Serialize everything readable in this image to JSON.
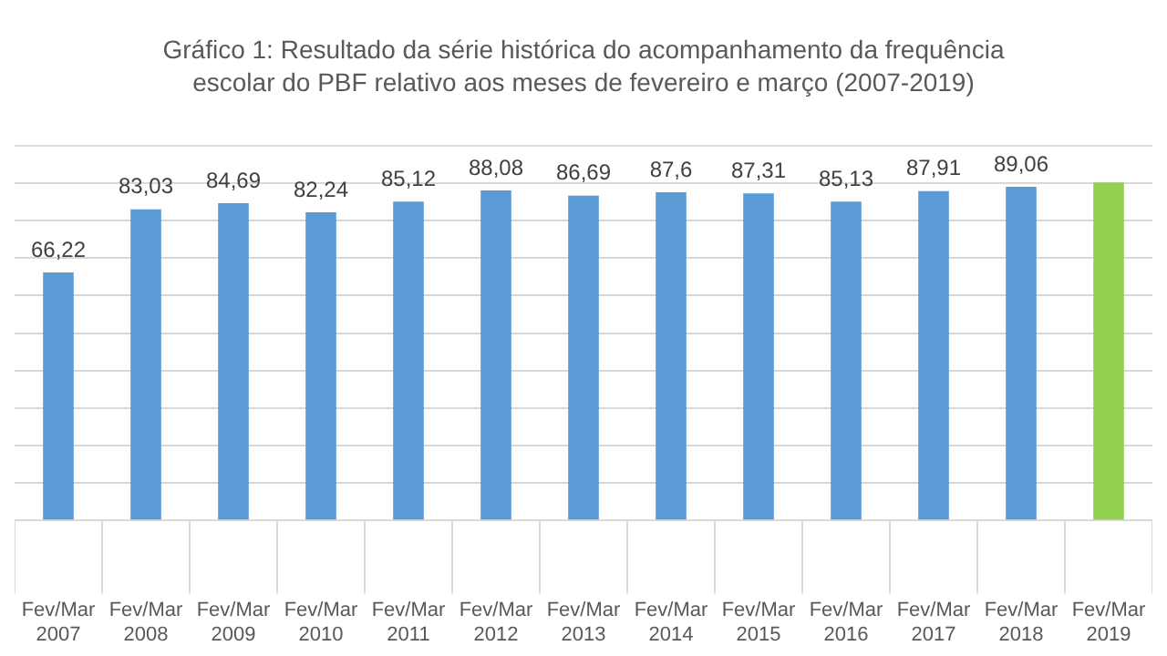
{
  "chart_data": {
    "type": "bar",
    "title": "Gráfico 1: Resultado da série histórica do acompanhamento  da frequência escolar do PBF relativo aos meses de fevereiro e março (2007-2019)",
    "categories": [
      "Fev/Mar 2007",
      "Fev/Mar 2008",
      "Fev/Mar 2009",
      "Fev/Mar 2010",
      "Fev/Mar 2011",
      "Fev/Mar 2012",
      "Fev/Mar 2013",
      "Fev/Mar 2014",
      "Fev/Mar 2015",
      "Fev/Mar 2016",
      "Fev/Mar 2017",
      "Fev/Mar 2018",
      "Fev/Mar 2019"
    ],
    "values": [
      66.22,
      83.03,
      84.69,
      82.24,
      85.12,
      88.08,
      86.69,
      87.6,
      87.31,
      85.13,
      87.91,
      89.06,
      90.2
    ],
    "colors": [
      "#5b9bd5",
      "#5b9bd5",
      "#5b9bd5",
      "#5b9bd5",
      "#5b9bd5",
      "#5b9bd5",
      "#5b9bd5",
      "#5b9bd5",
      "#5b9bd5",
      "#5b9bd5",
      "#5b9bd5",
      "#5b9bd5",
      "#92d050"
    ],
    "value_labels": [
      "66,22",
      "83,03",
      "84,69",
      "82,24",
      "85,12",
      "88,08",
      "86,69",
      "87,6",
      "87,31",
      "85,13",
      "87,91",
      "89,06",
      null
    ],
    "ylim": [
      0,
      100
    ],
    "grid": "y",
    "tick_labels": "x",
    "legend": false
  }
}
